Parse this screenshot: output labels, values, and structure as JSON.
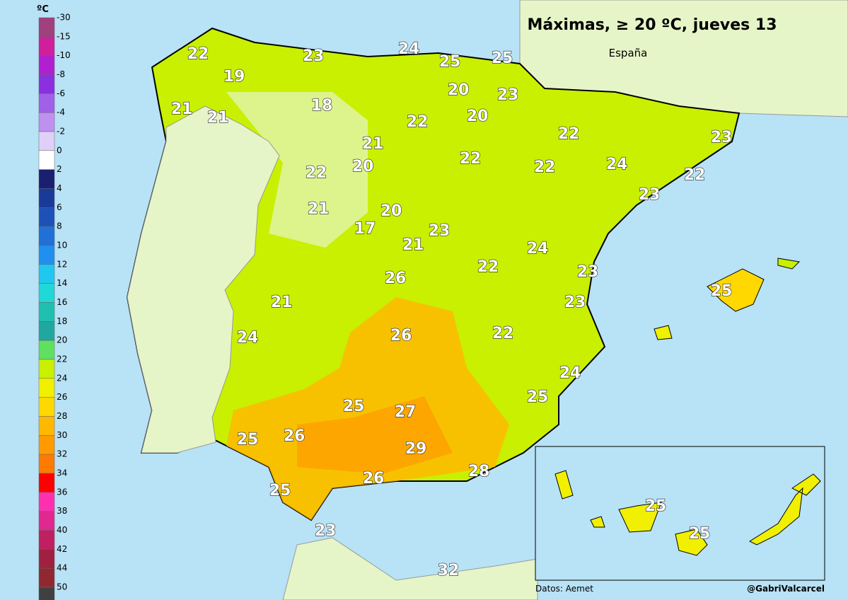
{
  "title": "Máximas, ≥ 20 ºC, jueves 13",
  "subtitle": "España",
  "legend": {
    "unit": "ºC",
    "labels": [
      -30,
      -15,
      -10,
      -8,
      -6,
      -4,
      -2,
      0,
      2,
      4,
      6,
      8,
      10,
      12,
      14,
      16,
      18,
      20,
      22,
      24,
      26,
      28,
      30,
      32,
      34,
      36,
      38,
      40,
      42,
      44,
      50
    ],
    "colors": [
      "#a0407f",
      "#d01f9a",
      "#b020d0",
      "#8a30e0",
      "#a060e8",
      "#c090f0",
      "#e0d0f8",
      "#ffffff",
      "#1a1f70",
      "#1a3a9a",
      "#1e50b8",
      "#2070d8",
      "#2090f0",
      "#20c8f0",
      "#20d8d8",
      "#20c0b0",
      "#20a8a0",
      "#60e060",
      "#c8f000",
      "#f0f000",
      "#ffd800",
      "#ffb800",
      "#ff9a00",
      "#ff7a00",
      "#ff0000",
      "#ff30b0",
      "#e02890",
      "#c02060",
      "#a02040",
      "#902830",
      "#404040"
    ]
  },
  "values": [
    22,
    23,
    24,
    25,
    25,
    19,
    20,
    23,
    18,
    21,
    21,
    22,
    20,
    22,
    23,
    21,
    20,
    22,
    22,
    24,
    22,
    22,
    23,
    21,
    20,
    17,
    23,
    21,
    24,
    22,
    23,
    26,
    25,
    21,
    23,
    26,
    22,
    24,
    24,
    25,
    25,
    27,
    25,
    26,
    29,
    28,
    26,
    25,
    25,
    25,
    23,
    32
  ],
  "source": "Datos: Aemet",
  "credit": "@GabriValcarcel"
}
